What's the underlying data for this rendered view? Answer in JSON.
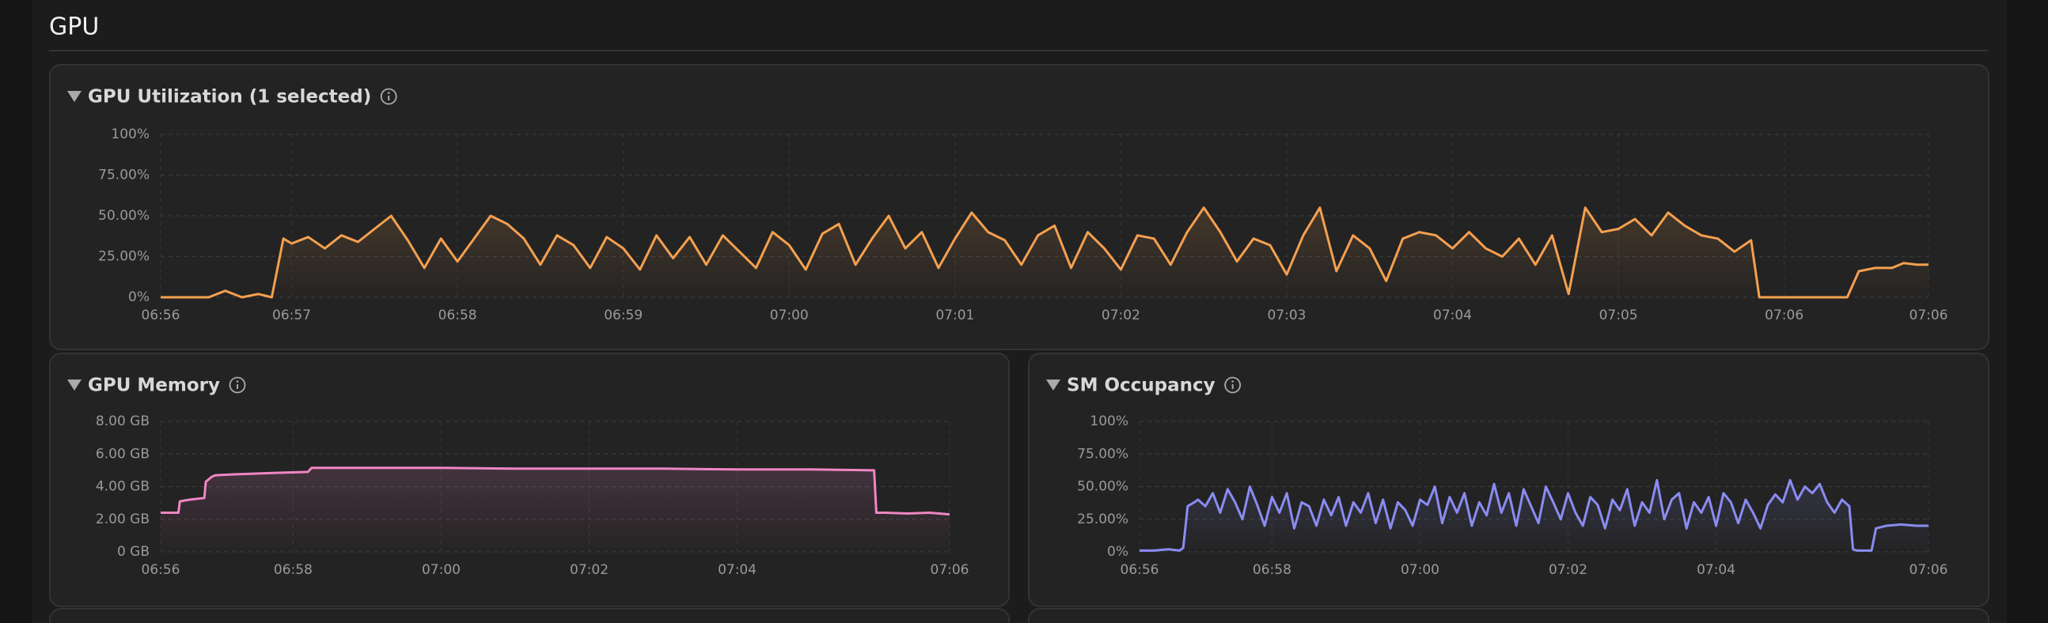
{
  "header": "GPU",
  "chart_data": [
    {
      "type": "line",
      "title": "GPU Utilization (1 selected)",
      "color": "#f5a04f",
      "grid": true,
      "xlim": [
        0.21,
        10.87
      ],
      "xticks": [
        {
          "value": 0.21,
          "label": "06:56"
        },
        {
          "value": 1,
          "label": "06:57"
        },
        {
          "value": 2,
          "label": "06:58"
        },
        {
          "value": 3,
          "label": "06:59"
        },
        {
          "value": 4,
          "label": "07:00"
        },
        {
          "value": 5,
          "label": "07:01"
        },
        {
          "value": 6,
          "label": "07:02"
        },
        {
          "value": 7,
          "label": "07:03"
        },
        {
          "value": 8,
          "label": "07:04"
        },
        {
          "value": 9,
          "label": "07:05"
        },
        {
          "value": 10,
          "label": "07:06"
        },
        {
          "value": 10.87,
          "label": "07:06"
        }
      ],
      "ylim": [
        0,
        100
      ],
      "yticks": [
        {
          "value": 0,
          "label": "0%"
        },
        {
          "value": 25,
          "label": "25.00%"
        },
        {
          "value": 50,
          "label": "50.00%"
        },
        {
          "value": 75,
          "label": "75.00%"
        },
        {
          "value": 100,
          "label": "100%"
        }
      ],
      "x": [
        0.21,
        0.35,
        0.5,
        0.6,
        0.7,
        0.8,
        0.88,
        0.95,
        1.0,
        1.1,
        1.2,
        1.3,
        1.4,
        1.5,
        1.6,
        1.7,
        1.8,
        1.9,
        2.0,
        2.1,
        2.2,
        2.3,
        2.4,
        2.5,
        2.6,
        2.7,
        2.8,
        2.9,
        3.0,
        3.1,
        3.2,
        3.3,
        3.4,
        3.5,
        3.6,
        3.7,
        3.8,
        3.9,
        4.0,
        4.1,
        4.2,
        4.3,
        4.4,
        4.5,
        4.6,
        4.7,
        4.8,
        4.9,
        5.0,
        5.1,
        5.2,
        5.3,
        5.4,
        5.5,
        5.6,
        5.7,
        5.8,
        5.9,
        6.0,
        6.1,
        6.2,
        6.3,
        6.4,
        6.5,
        6.6,
        6.7,
        6.8,
        6.9,
        7.0,
        7.1,
        7.2,
        7.3,
        7.4,
        7.5,
        7.6,
        7.7,
        7.8,
        7.9,
        8.0,
        8.1,
        8.2,
        8.3,
        8.4,
        8.5,
        8.6,
        8.7,
        8.8,
        8.9,
        9.0,
        9.1,
        9.2,
        9.3,
        9.4,
        9.5,
        9.6,
        9.7,
        9.8,
        9.85,
        10.0,
        10.2,
        10.38,
        10.45,
        10.55,
        10.65,
        10.72,
        10.8,
        10.87
      ],
      "values": [
        0,
        0,
        0,
        4,
        0,
        2,
        0,
        36,
        33,
        37,
        30,
        38,
        34,
        42,
        50,
        35,
        18,
        36,
        22,
        36,
        50,
        45,
        36,
        20,
        38,
        32,
        18,
        37,
        30,
        17,
        38,
        24,
        37,
        20,
        38,
        28,
        18,
        40,
        32,
        17,
        39,
        45,
        20,
        36,
        50,
        30,
        40,
        18,
        36,
        52,
        40,
        35,
        20,
        38,
        44,
        18,
        40,
        30,
        17,
        38,
        36,
        20,
        40,
        55,
        40,
        22,
        36,
        32,
        14,
        38,
        55,
        16,
        38,
        30,
        10,
        36,
        40,
        38,
        30,
        40,
        30,
        25,
        36,
        20,
        38,
        2,
        55,
        40,
        42,
        48,
        38,
        52,
        44,
        38,
        36,
        28,
        35,
        0,
        0,
        0,
        0,
        16,
        18,
        18,
        21,
        20,
        20
      ]
    },
    {
      "type": "line",
      "title": "GPU Memory",
      "color": "#ef86c4",
      "grid": true,
      "xlim": [
        0.21,
        10.87
      ],
      "xticks": [
        {
          "value": 0.21,
          "label": "06:56"
        },
        {
          "value": 2,
          "label": "06:58"
        },
        {
          "value": 4,
          "label": "07:00"
        },
        {
          "value": 6,
          "label": "07:02"
        },
        {
          "value": 8,
          "label": "07:04"
        },
        {
          "value": 10.87,
          "label": "07:06"
        }
      ],
      "ylim": [
        0,
        8
      ],
      "yticks": [
        {
          "value": 0,
          "label": "0 GB"
        },
        {
          "value": 2,
          "label": "2.00 GB"
        },
        {
          "value": 4,
          "label": "4.00 GB"
        },
        {
          "value": 6,
          "label": "6.00 GB"
        },
        {
          "value": 8,
          "label": "8.00 GB"
        }
      ],
      "x": [
        0.21,
        0.45,
        0.47,
        0.6,
        0.8,
        0.82,
        0.9,
        0.95,
        1.2,
        1.5,
        1.8,
        2.2,
        2.25,
        3.0,
        4.0,
        5.0,
        6.0,
        7.0,
        8.0,
        9.0,
        9.85,
        9.88,
        10.0,
        10.3,
        10.6,
        10.87
      ],
      "values": [
        2.4,
        2.4,
        3.1,
        3.2,
        3.3,
        4.3,
        4.6,
        4.7,
        4.75,
        4.8,
        4.85,
        4.9,
        5.15,
        5.15,
        5.15,
        5.1,
        5.1,
        5.1,
        5.05,
        5.05,
        5.0,
        2.4,
        2.4,
        2.35,
        2.4,
        2.3
      ]
    },
    {
      "type": "line",
      "title": "SM Occupancy",
      "color": "#8a8cf2",
      "grid": true,
      "xlim": [
        0.21,
        10.87
      ],
      "xticks": [
        {
          "value": 0.21,
          "label": "06:56"
        },
        {
          "value": 2,
          "label": "06:58"
        },
        {
          "value": 4,
          "label": "07:00"
        },
        {
          "value": 6,
          "label": "07:02"
        },
        {
          "value": 8,
          "label": "07:04"
        },
        {
          "value": 10.87,
          "label": "07:06"
        }
      ],
      "ylim": [
        0,
        100
      ],
      "yticks": [
        {
          "value": 0,
          "label": "0%"
        },
        {
          "value": 25,
          "label": "25.00%"
        },
        {
          "value": 50,
          "label": "50.00%"
        },
        {
          "value": 75,
          "label": "75.00%"
        },
        {
          "value": 100,
          "label": "100%"
        }
      ],
      "x": [
        0.21,
        0.4,
        0.6,
        0.75,
        0.8,
        0.86,
        0.95,
        1.0,
        1.1,
        1.2,
        1.3,
        1.4,
        1.5,
        1.6,
        1.7,
        1.8,
        1.9,
        2.0,
        2.1,
        2.2,
        2.3,
        2.4,
        2.5,
        2.6,
        2.7,
        2.8,
        2.9,
        3.0,
        3.1,
        3.2,
        3.3,
        3.4,
        3.5,
        3.6,
        3.7,
        3.8,
        3.9,
        4.0,
        4.1,
        4.2,
        4.3,
        4.4,
        4.5,
        4.6,
        4.7,
        4.8,
        4.9,
        5.0,
        5.1,
        5.2,
        5.3,
        5.4,
        5.5,
        5.6,
        5.7,
        5.8,
        5.9,
        6.0,
        6.1,
        6.2,
        6.3,
        6.4,
        6.5,
        6.6,
        6.7,
        6.8,
        6.9,
        7.0,
        7.1,
        7.2,
        7.3,
        7.4,
        7.5,
        7.6,
        7.7,
        7.8,
        7.9,
        8.0,
        8.1,
        8.2,
        8.3,
        8.4,
        8.5,
        8.6,
        8.7,
        8.8,
        8.9,
        9.0,
        9.1,
        9.2,
        9.3,
        9.4,
        9.5,
        9.6,
        9.7,
        9.8,
        9.85,
        9.9,
        10.0,
        10.1,
        10.16,
        10.3,
        10.5,
        10.7,
        10.87
      ],
      "values": [
        1,
        1,
        2,
        1,
        3,
        35,
        38,
        40,
        35,
        45,
        30,
        48,
        38,
        25,
        50,
        36,
        20,
        42,
        30,
        45,
        18,
        38,
        35,
        20,
        40,
        28,
        42,
        20,
        38,
        30,
        45,
        22,
        40,
        18,
        38,
        32,
        20,
        40,
        36,
        50,
        22,
        42,
        30,
        45,
        20,
        38,
        28,
        52,
        30,
        45,
        20,
        48,
        35,
        22,
        50,
        38,
        25,
        45,
        30,
        20,
        42,
        36,
        18,
        40,
        32,
        48,
        20,
        38,
        30,
        55,
        25,
        40,
        45,
        18,
        38,
        30,
        42,
        20,
        45,
        38,
        22,
        40,
        30,
        18,
        36,
        44,
        38,
        55,
        40,
        50,
        45,
        52,
        38,
        30,
        40,
        35,
        2,
        1,
        1,
        1,
        18,
        20,
        21,
        20,
        20
      ]
    }
  ]
}
